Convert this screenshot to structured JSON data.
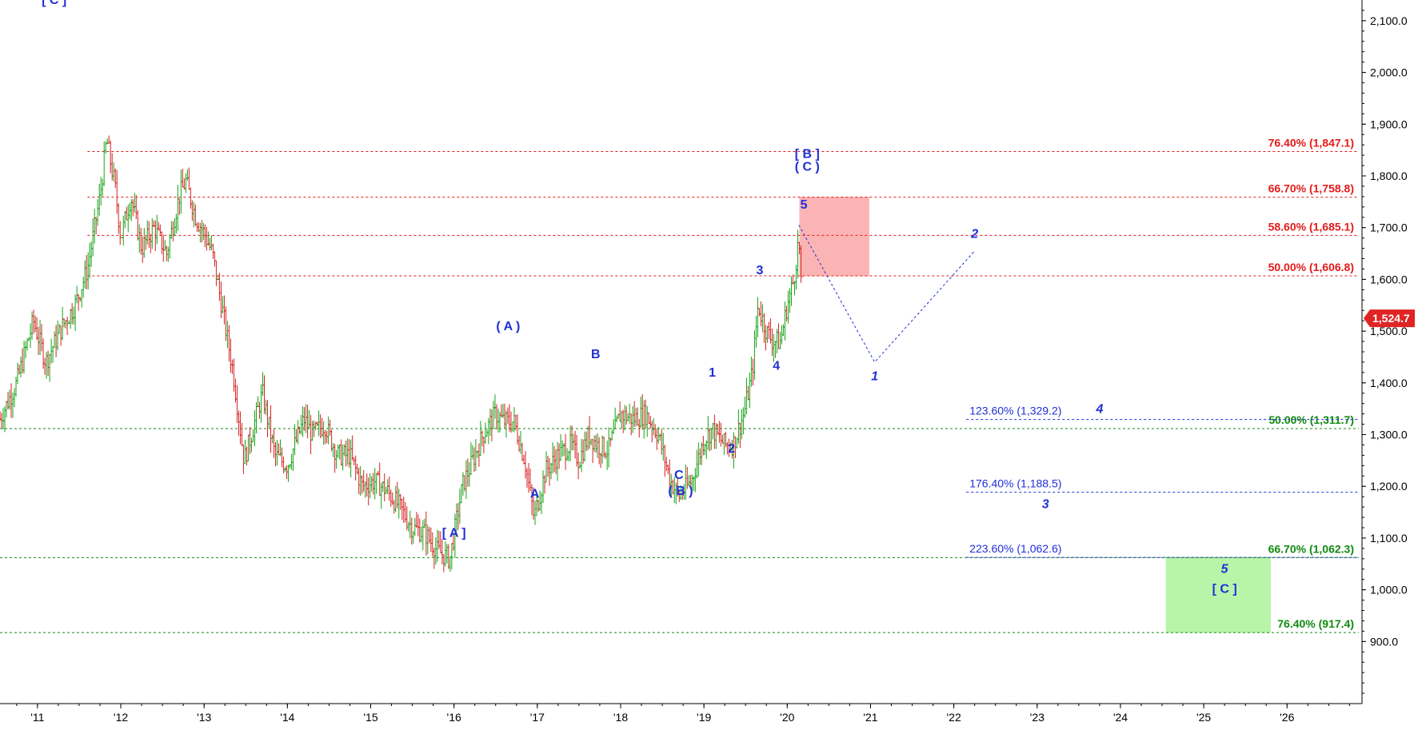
{
  "chart_data": {
    "type": "ohlc",
    "x_tick_labels": [
      "'11",
      "'12",
      "'13",
      "'14",
      "'15",
      "'16",
      "'17",
      "'18",
      "'19",
      "'20",
      "'21",
      "'22",
      "'23",
      "'24",
      "'25",
      "'26"
    ],
    "x_tick_years": [
      2011,
      2012,
      2013,
      2014,
      2015,
      2016,
      2017,
      2018,
      2019,
      2020,
      2021,
      2022,
      2023,
      2024,
      2025,
      2026
    ],
    "y_ticks": [
      900,
      1000,
      1100,
      1200,
      1300,
      1400,
      1500,
      1600,
      1700,
      1800,
      1900,
      2000,
      2100
    ],
    "y_tick_labels": [
      "900.0",
      "1,000.0",
      "1,100.0",
      "1,200.0",
      "1,300.0",
      "1,400.0",
      "1,500.0",
      "1,600.0",
      "1,700.0",
      "1,800.0",
      "1,900.0",
      "2,000.0",
      "2,100.0"
    ],
    "ylim": [
      780,
      2140
    ],
    "xlim": [
      2010.55,
      2026.9
    ],
    "grid": false,
    "last_price": 1524.7,
    "last_price_label": "1,524.7",
    "price_path": [
      [
        2010.55,
        1330
      ],
      [
        2010.75,
        1400
      ],
      [
        2010.95,
        1520
      ],
      [
        2011.1,
        1440
      ],
      [
        2011.3,
        1510
      ],
      [
        2011.45,
        1550
      ],
      [
        2011.6,
        1620
      ],
      [
        2011.75,
        1760
      ],
      [
        2011.83,
        1870
      ],
      [
        2011.93,
        1780
      ],
      [
        2012.0,
        1680
      ],
      [
        2012.12,
        1760
      ],
      [
        2012.25,
        1660
      ],
      [
        2012.4,
        1700
      ],
      [
        2012.55,
        1650
      ],
      [
        2012.7,
        1760
      ],
      [
        2012.78,
        1790
      ],
      [
        2012.9,
        1720
      ],
      [
        2013.0,
        1690
      ],
      [
        2013.1,
        1650
      ],
      [
        2013.2,
        1560
      ],
      [
        2013.35,
        1420
      ],
      [
        2013.48,
        1250
      ],
      [
        2013.55,
        1290
      ],
      [
        2013.7,
        1380
      ],
      [
        2013.85,
        1260
      ],
      [
        2014.0,
        1240
      ],
      [
        2014.2,
        1330
      ],
      [
        2014.3,
        1300
      ],
      [
        2014.45,
        1320
      ],
      [
        2014.6,
        1260
      ],
      [
        2014.75,
        1260
      ],
      [
        2014.9,
        1200
      ],
      [
        2015.05,
        1210
      ],
      [
        2015.2,
        1190
      ],
      [
        2015.35,
        1160
      ],
      [
        2015.5,
        1120
      ],
      [
        2015.65,
        1110
      ],
      [
        2015.8,
        1075
      ],
      [
        2015.95,
        1060
      ],
      [
        2016.1,
        1200
      ],
      [
        2016.2,
        1240
      ],
      [
        2016.35,
        1300
      ],
      [
        2016.5,
        1340
      ],
      [
        2016.6,
        1325
      ],
      [
        2016.72,
        1325
      ],
      [
        2016.85,
        1250
      ],
      [
        2016.96,
        1140
      ],
      [
        2017.1,
        1230
      ],
      [
        2017.25,
        1260
      ],
      [
        2017.4,
        1280
      ],
      [
        2017.5,
        1250
      ],
      [
        2017.62,
        1300
      ],
      [
        2017.72,
        1280
      ],
      [
        2017.85,
        1270
      ],
      [
        2018.0,
        1340
      ],
      [
        2018.15,
        1330
      ],
      [
        2018.3,
        1340
      ],
      [
        2018.45,
        1300
      ],
      [
        2018.6,
        1210
      ],
      [
        2018.7,
        1180
      ],
      [
        2018.85,
        1210
      ],
      [
        2019.0,
        1290
      ],
      [
        2019.1,
        1310
      ],
      [
        2019.25,
        1280
      ],
      [
        2019.35,
        1280
      ],
      [
        2019.48,
        1340
      ],
      [
        2019.58,
        1420
      ],
      [
        2019.65,
        1550
      ],
      [
        2019.75,
        1500
      ],
      [
        2019.83,
        1480
      ],
      [
        2019.92,
        1480
      ],
      [
        2020.0,
        1550
      ],
      [
        2020.08,
        1600
      ],
      [
        2020.14,
        1680
      ],
      [
        2020.18,
        1530
      ]
    ],
    "fib_lines": [
      {
        "label": "76.40% (1,847.1)",
        "value": 1847.1,
        "side": "right",
        "color": "#e41a1a",
        "start_year": 2011.6
      },
      {
        "label": "66.70% (1,758.8)",
        "value": 1758.8,
        "side": "right",
        "color": "#e41a1a",
        "start_year": 2011.6
      },
      {
        "label": "58.60% (1,685.1)",
        "value": 1685.1,
        "side": "right",
        "color": "#e41a1a",
        "start_year": 2011.6
      },
      {
        "label": "50.00% (1,606.8)",
        "value": 1606.8,
        "side": "right",
        "color": "#e41a1a",
        "start_year": 2011.6
      },
      {
        "label": "50.00% (1,311.7)",
        "value": 1311.7,
        "side": "right",
        "color": "#108a10",
        "start_year": 2010.55
      },
      {
        "label": "66.70% (1,062.3)",
        "value": 1062.3,
        "side": "right",
        "color": "#108a10",
        "start_year": 2010.55
      },
      {
        "label": "76.40% (917.4)",
        "value": 917.4,
        "side": "right",
        "color": "#108a10",
        "start_year": 2010.55
      },
      {
        "label": "123.60% (1,329.2)",
        "value": 1329.2,
        "side": "left",
        "color": "#1f2fd6",
        "start_year": 2022.15
      },
      {
        "label": "176.40% (1,188.5)",
        "value": 1188.5,
        "side": "left",
        "color": "#1f2fd6",
        "start_year": 2022.15
      },
      {
        "label": "223.60% (1,062.6)",
        "value": 1062.6,
        "side": "left",
        "color": "#1f2fd6",
        "start_year": 2022.15
      }
    ],
    "zones": [
      {
        "name": "resistance-zone",
        "x0": 2020.15,
        "x1": 2020.98,
        "y0": 1606.8,
        "y1": 1758.8,
        "color": "#fbb4b4"
      },
      {
        "name": "target-zone",
        "x0": 2024.55,
        "x1": 2025.8,
        "y0": 917.4,
        "y1": 1062.3,
        "color": "#b8f5a8"
      }
    ],
    "projection_path": [
      [
        2020.14,
        1705
      ],
      [
        2021.05,
        1440
      ],
      [
        2022.25,
        1655
      ]
    ],
    "wave_labels": [
      {
        "text": "[ C ]",
        "x": 2011.2,
        "y": 2132,
        "italic": false
      },
      {
        "text": "( A )",
        "x": 2016.65,
        "y": 1502,
        "italic": false
      },
      {
        "text": "[ A ]",
        "x": 2016.0,
        "y": 1102,
        "italic": false
      },
      {
        "text": "A",
        "x": 2016.97,
        "y": 1178,
        "italic": false
      },
      {
        "text": "B",
        "x": 2017.7,
        "y": 1448,
        "italic": false
      },
      {
        "text": "C",
        "x": 2018.7,
        "y": 1214,
        "italic": false
      },
      {
        "text": "( B )",
        "x": 2018.72,
        "y": 1183,
        "italic": false
      },
      {
        "text": "1",
        "x": 2019.1,
        "y": 1412,
        "italic": false
      },
      {
        "text": "2",
        "x": 2019.33,
        "y": 1265,
        "italic": false
      },
      {
        "text": "3",
        "x": 2019.67,
        "y": 1610,
        "italic": false
      },
      {
        "text": "4",
        "x": 2019.87,
        "y": 1425,
        "italic": false
      },
      {
        "text": "[ B ]",
        "x": 2020.24,
        "y": 1835,
        "italic": false
      },
      {
        "text": "( C )",
        "x": 2020.24,
        "y": 1810,
        "italic": false
      },
      {
        "text": "5",
        "x": 2020.2,
        "y": 1737,
        "italic": false
      },
      {
        "text": "1",
        "x": 2021.05,
        "y": 1405,
        "italic": true
      },
      {
        "text": "2",
        "x": 2022.25,
        "y": 1680,
        "italic": true
      },
      {
        "text": "3",
        "x": 2023.1,
        "y": 1158,
        "italic": true
      },
      {
        "text": "4",
        "x": 2023.75,
        "y": 1342,
        "italic": true
      },
      {
        "text": "5",
        "x": 2025.25,
        "y": 1033,
        "italic": true
      },
      {
        "text": "[ C ]",
        "x": 2025.25,
        "y": 994,
        "italic": false
      }
    ],
    "colors": {
      "up": "#16a316",
      "down": "#d62020",
      "label": "#1f2fd6",
      "axis": "#000000",
      "last_price_bg": "#e02424"
    }
  }
}
